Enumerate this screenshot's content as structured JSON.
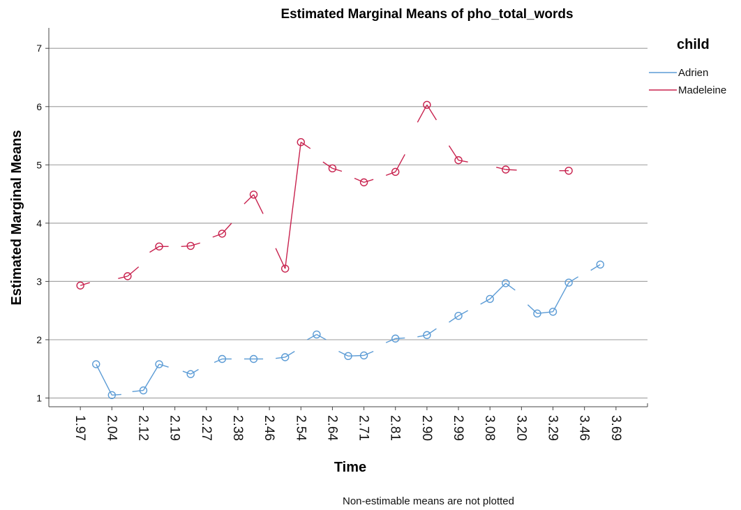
{
  "chart_data": {
    "type": "line",
    "title": "Estimated Marginal Means of pho_total_words",
    "xlabel": "Time",
    "ylabel": "Estimated Marginal Means",
    "footnote": "Non-estimable means are not plotted",
    "legend_title": "child",
    "legend_position": "top-right",
    "grid": true,
    "ylim": [
      0.85,
      7.35
    ],
    "yticks": [
      1,
      2,
      3,
      4,
      5,
      6,
      7
    ],
    "x_tick_labels": [
      "1.97",
      "2.04",
      "2.12",
      "2.19",
      "2.27",
      "2.38",
      "2.46",
      "2.54",
      "2.64",
      "2.71",
      "2.81",
      "2.90",
      "2.99",
      "3.08",
      "3.20",
      "3.29",
      "3.46",
      "3.69"
    ],
    "series": [
      {
        "name": "Adrien",
        "color": "#5b9bd5",
        "points": [
          {
            "x": 1.5,
            "y": 1.58
          },
          {
            "x": 2.0,
            "y": 1.05
          },
          {
            "x": 3.0,
            "y": 1.13
          },
          {
            "x": 3.5,
            "y": 1.58
          },
          {
            "x": 4.5,
            "y": 1.41
          },
          {
            "x": 5.5,
            "y": 1.67
          },
          {
            "x": 6.5,
            "y": 1.67
          },
          {
            "x": 7.5,
            "y": 1.7
          },
          {
            "x": 8.5,
            "y": 2.09
          },
          {
            "x": 9.5,
            "y": 1.72
          },
          {
            "x": 10.0,
            "y": 1.73
          },
          {
            "x": 11.0,
            "y": 2.02
          },
          {
            "x": 12.0,
            "y": 2.08
          },
          {
            "x": 13.0,
            "y": 2.41
          },
          {
            "x": 14.0,
            "y": 2.7
          },
          {
            "x": 14.5,
            "y": 2.97
          },
          {
            "x": 15.5,
            "y": 2.45
          },
          {
            "x": 16.0,
            "y": 2.48
          },
          {
            "x": 16.5,
            "y": 2.98
          },
          {
            "x": 17.5,
            "y": 3.29
          }
        ],
        "segments": [
          [
            [
              1.5,
              1.58
            ],
            [
              2.0,
              1.05
            ]
          ],
          [
            [
              2.0,
              1.05
            ],
            [
              2.3,
              1.06
            ]
          ],
          [
            [
              2.65,
              1.11
            ],
            [
              3.0,
              1.13
            ]
          ],
          [
            [
              3.0,
              1.13
            ],
            [
              3.5,
              1.58
            ]
          ],
          [
            [
              3.5,
              1.58
            ],
            [
              3.8,
              1.53
            ]
          ],
          [
            [
              4.25,
              1.46
            ],
            [
              4.5,
              1.41
            ]
          ],
          [
            [
              4.5,
              1.41
            ],
            [
              4.75,
              1.49
            ]
          ],
          [
            [
              5.25,
              1.61
            ],
            [
              5.5,
              1.67
            ]
          ],
          [
            [
              5.5,
              1.67
            ],
            [
              5.8,
              1.67
            ]
          ],
          [
            [
              6.2,
              1.67
            ],
            [
              6.5,
              1.67
            ]
          ],
          [
            [
              6.5,
              1.67
            ],
            [
              6.8,
              1.67
            ]
          ],
          [
            [
              7.2,
              1.68
            ],
            [
              7.5,
              1.7
            ]
          ],
          [
            [
              7.5,
              1.7
            ],
            [
              7.8,
              1.8
            ]
          ],
          [
            [
              8.2,
              2.0
            ],
            [
              8.5,
              2.09
            ]
          ],
          [
            [
              8.5,
              2.09
            ],
            [
              8.8,
              2.0
            ]
          ],
          [
            [
              9.2,
              1.8
            ],
            [
              9.5,
              1.72
            ]
          ],
          [
            [
              9.5,
              1.72
            ],
            [
              10.0,
              1.73
            ]
          ],
          [
            [
              10.0,
              1.73
            ],
            [
              10.3,
              1.8
            ]
          ],
          [
            [
              10.7,
              1.95
            ],
            [
              11.0,
              2.02
            ]
          ],
          [
            [
              11.0,
              2.02
            ],
            [
              11.3,
              2.03
            ]
          ],
          [
            [
              11.7,
              2.05
            ],
            [
              12.0,
              2.08
            ]
          ],
          [
            [
              12.0,
              2.08
            ],
            [
              12.3,
              2.19
            ]
          ],
          [
            [
              12.7,
              2.3
            ],
            [
              13.0,
              2.41
            ]
          ],
          [
            [
              13.0,
              2.41
            ],
            [
              13.3,
              2.5
            ]
          ],
          [
            [
              13.7,
              2.61
            ],
            [
              14.0,
              2.7
            ]
          ],
          [
            [
              14.0,
              2.7
            ],
            [
              14.5,
              2.97
            ]
          ],
          [
            [
              14.5,
              2.97
            ],
            [
              14.8,
              2.85
            ]
          ],
          [
            [
              15.2,
              2.6
            ],
            [
              15.5,
              2.45
            ]
          ],
          [
            [
              15.5,
              2.45
            ],
            [
              16.0,
              2.48
            ]
          ],
          [
            [
              16.0,
              2.48
            ],
            [
              16.5,
              2.98
            ]
          ],
          [
            [
              16.5,
              2.98
            ],
            [
              16.8,
              3.08
            ]
          ],
          [
            [
              17.2,
              3.19
            ],
            [
              17.5,
              3.29
            ]
          ]
        ]
      },
      {
        "name": "Madeleine",
        "color": "#c8224e",
        "points": [
          {
            "x": 1.0,
            "y": 2.93
          },
          {
            "x": 2.5,
            "y": 3.09
          },
          {
            "x": 3.5,
            "y": 3.6
          },
          {
            "x": 4.5,
            "y": 3.61
          },
          {
            "x": 5.5,
            "y": 3.82
          },
          {
            "x": 6.5,
            "y": 4.49
          },
          {
            "x": 7.5,
            "y": 3.22
          },
          {
            "x": 8.0,
            "y": 5.39
          },
          {
            "x": 9.0,
            "y": 4.94
          },
          {
            "x": 10.0,
            "y": 4.7
          },
          {
            "x": 11.0,
            "y": 4.88
          },
          {
            "x": 12.0,
            "y": 6.03
          },
          {
            "x": 13.0,
            "y": 5.08
          },
          {
            "x": 14.5,
            "y": 4.92
          },
          {
            "x": 16.5,
            "y": 4.9
          }
        ],
        "segments": [
          [
            [
              1.0,
              2.93
            ],
            [
              1.3,
              2.98
            ]
          ],
          [
            [
              2.2,
              3.05
            ],
            [
              2.5,
              3.09
            ]
          ],
          [
            [
              2.5,
              3.09
            ],
            [
              2.85,
              3.25
            ]
          ],
          [
            [
              3.2,
              3.5
            ],
            [
              3.5,
              3.6
            ]
          ],
          [
            [
              3.5,
              3.6
            ],
            [
              3.8,
              3.6
            ]
          ],
          [
            [
              4.2,
              3.6
            ],
            [
              4.5,
              3.61
            ]
          ],
          [
            [
              4.5,
              3.61
            ],
            [
              4.8,
              3.66
            ]
          ],
          [
            [
              5.2,
              3.76
            ],
            [
              5.5,
              3.82
            ]
          ],
          [
            [
              5.5,
              3.82
            ],
            [
              5.8,
              4.0
            ]
          ],
          [
            [
              6.2,
              4.33
            ],
            [
              6.5,
              4.49
            ]
          ],
          [
            [
              6.5,
              4.49
            ],
            [
              6.8,
              4.16
            ]
          ],
          [
            [
              7.2,
              3.57
            ],
            [
              7.5,
              3.22
            ]
          ],
          [
            [
              7.5,
              3.22
            ],
            [
              8.0,
              5.39
            ]
          ],
          [
            [
              8.0,
              5.39
            ],
            [
              8.3,
              5.28
            ]
          ],
          [
            [
              8.7,
              5.05
            ],
            [
              9.0,
              4.94
            ]
          ],
          [
            [
              9.0,
              4.94
            ],
            [
              9.3,
              4.89
            ]
          ],
          [
            [
              9.7,
              4.77
            ],
            [
              10.0,
              4.7
            ]
          ],
          [
            [
              10.0,
              4.7
            ],
            [
              10.3,
              4.75
            ]
          ],
          [
            [
              10.7,
              4.82
            ],
            [
              11.0,
              4.88
            ]
          ],
          [
            [
              11.0,
              4.88
            ],
            [
              11.3,
              5.18
            ]
          ],
          [
            [
              11.7,
              5.73
            ],
            [
              12.0,
              6.03
            ]
          ],
          [
            [
              12.0,
              6.03
            ],
            [
              12.3,
              5.77
            ]
          ],
          [
            [
              12.7,
              5.33
            ],
            [
              13.0,
              5.08
            ]
          ],
          [
            [
              13.0,
              5.08
            ],
            [
              13.3,
              5.05
            ]
          ],
          [
            [
              14.2,
              4.96
            ],
            [
              14.5,
              4.92
            ]
          ],
          [
            [
              14.5,
              4.92
            ],
            [
              14.85,
              4.91
            ]
          ],
          [
            [
              16.2,
              4.9
            ],
            [
              16.5,
              4.9
            ]
          ]
        ]
      }
    ]
  }
}
